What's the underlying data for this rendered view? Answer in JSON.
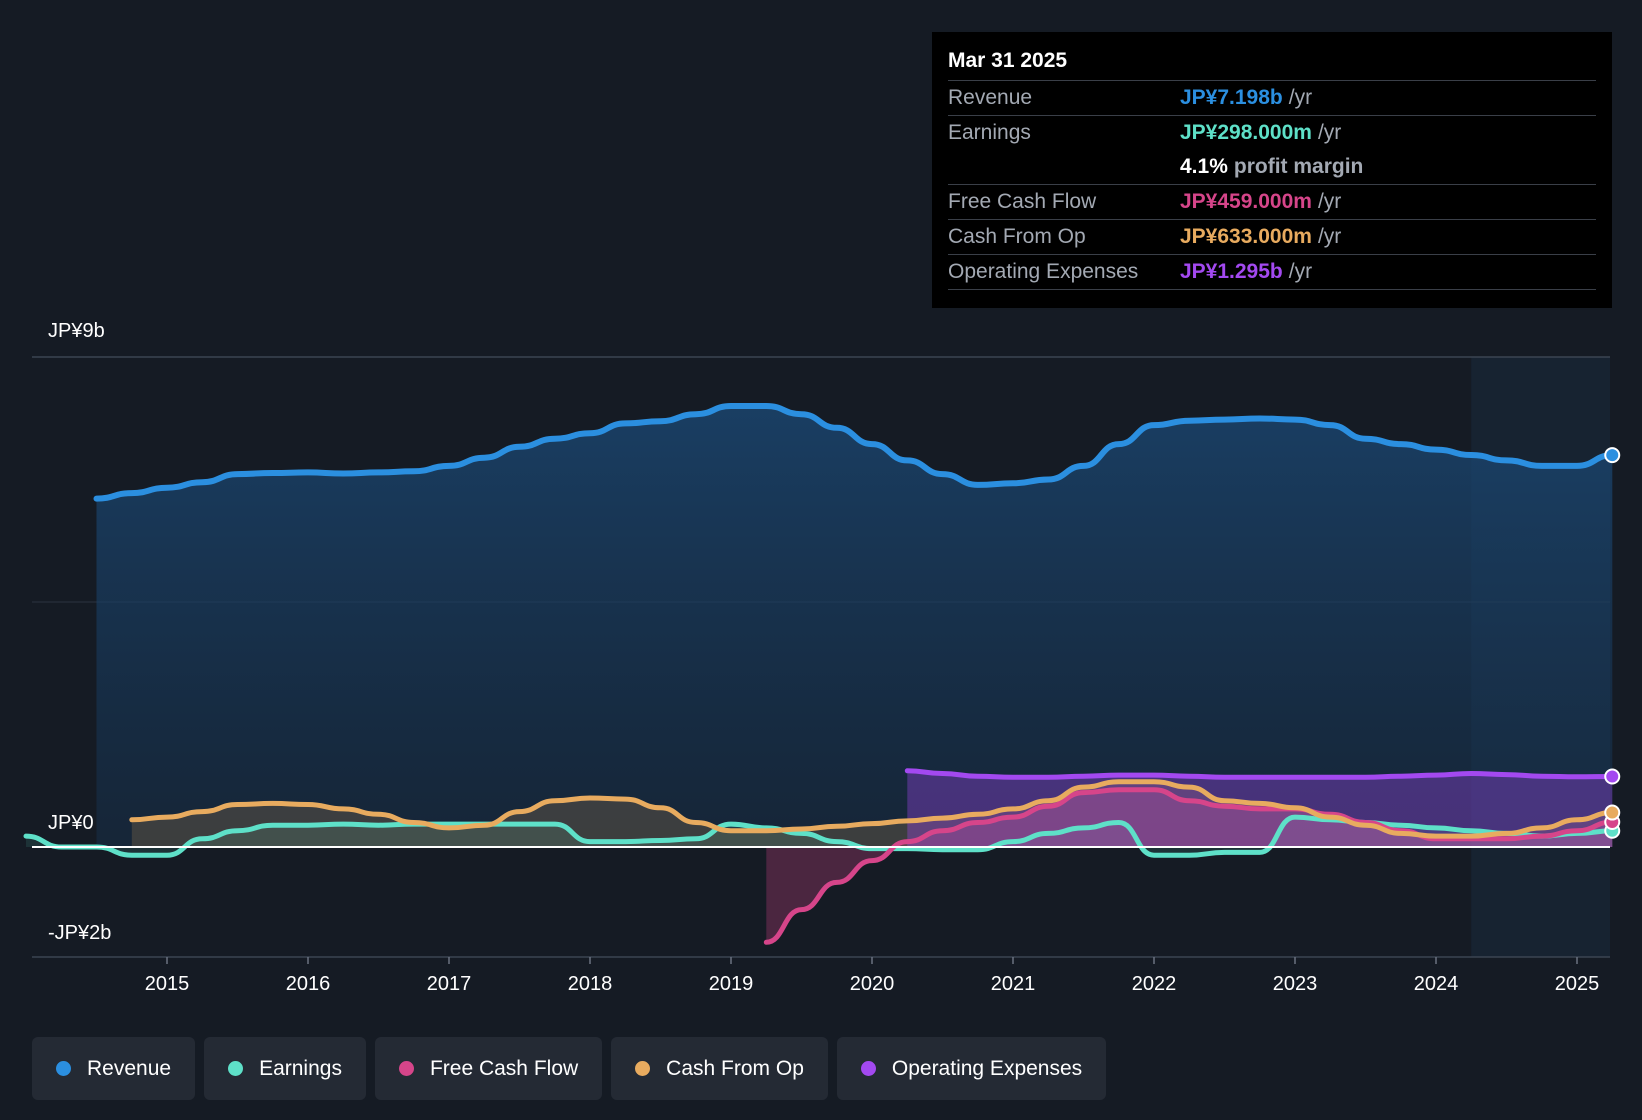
{
  "tooltip": {
    "date": "Mar 31 2025",
    "revenue": {
      "label": "Revenue",
      "value": "JP¥7.198b",
      "unit": "/yr"
    },
    "earnings": {
      "label": "Earnings",
      "value": "JP¥298.000m",
      "unit": "/yr"
    },
    "margin": {
      "value": "4.1%",
      "label": "profit margin"
    },
    "fcf": {
      "label": "Free Cash Flow",
      "value": "JP¥459.000m",
      "unit": "/yr"
    },
    "cfo": {
      "label": "Cash From Op",
      "value": "JP¥633.000m",
      "unit": "/yr"
    },
    "opex": {
      "label": "Operating Expenses",
      "value": "JP¥1.295b",
      "unit": "/yr"
    }
  },
  "axis": {
    "top": "JP¥9b",
    "zero": "JP¥0",
    "bottom": "-JP¥2b"
  },
  "legend": {
    "revenue": "Revenue",
    "earnings": "Earnings",
    "fcf": "Free Cash Flow",
    "cfo": "Cash From Op",
    "opex": "Operating Expenses"
  },
  "colors": {
    "revenue": "#2b8fe0",
    "earnings": "#5ee0c8",
    "fcf": "#d6458a",
    "cfo": "#e8ab5f",
    "opex": "#a349f0"
  },
  "chart_data": {
    "type": "area",
    "title": "",
    "xlabel": "",
    "ylabel": "",
    "ylim": [
      -2,
      9
    ],
    "x_ticks": [
      "2015",
      "2016",
      "2017",
      "2018",
      "2019",
      "2020",
      "2021",
      "2022",
      "2023",
      "2024",
      "2025"
    ],
    "x_range": [
      2014.0,
      2025.25
    ],
    "forecast_start": 2024.25,
    "series": [
      {
        "name": "Revenue",
        "key": "revenue",
        "x": [
          2014.5,
          2014.75,
          2015.0,
          2015.25,
          2015.5,
          2015.75,
          2016.0,
          2016.25,
          2016.5,
          2016.75,
          2017.0,
          2017.25,
          2017.5,
          2017.75,
          2018.0,
          2018.25,
          2018.5,
          2018.75,
          2019.0,
          2019.25,
          2019.5,
          2019.75,
          2020.0,
          2020.25,
          2020.5,
          2020.75,
          2021.0,
          2021.25,
          2021.5,
          2021.75,
          2022.0,
          2022.25,
          2022.5,
          2022.75,
          2023.0,
          2023.25,
          2023.5,
          2023.75,
          2024.0,
          2024.25,
          2024.5,
          2024.75,
          2025.0,
          2025.25
        ],
        "values": [
          6.4,
          6.5,
          6.6,
          6.7,
          6.85,
          6.87,
          6.88,
          6.86,
          6.88,
          6.9,
          7.0,
          7.15,
          7.35,
          7.5,
          7.6,
          7.78,
          7.82,
          7.95,
          8.1,
          8.1,
          7.95,
          7.7,
          7.4,
          7.1,
          6.85,
          6.65,
          6.68,
          6.75,
          7.0,
          7.4,
          7.75,
          7.83,
          7.85,
          7.87,
          7.85,
          7.75,
          7.5,
          7.4,
          7.3,
          7.2,
          7.1,
          7.0,
          7.0,
          7.198
        ]
      },
      {
        "name": "Earnings",
        "key": "earnings",
        "x": [
          2014.0,
          2014.25,
          2014.5,
          2014.75,
          2015.0,
          2015.25,
          2015.5,
          2015.75,
          2016.0,
          2016.25,
          2016.5,
          2016.75,
          2017.0,
          2017.25,
          2017.5,
          2017.75,
          2018.0,
          2018.25,
          2018.5,
          2018.75,
          2019.0,
          2019.25,
          2019.5,
          2019.75,
          2020.0,
          2020.25,
          2020.5,
          2020.75,
          2021.0,
          2021.25,
          2021.5,
          2021.75,
          2022.0,
          2022.25,
          2022.5,
          2022.75,
          2023.0,
          2023.25,
          2023.5,
          2023.75,
          2024.0,
          2024.25,
          2024.5,
          2024.75,
          2025.0,
          2025.25
        ],
        "values": [
          0.2,
          0.0,
          0.0,
          -0.15,
          -0.15,
          0.15,
          0.3,
          0.4,
          0.4,
          0.42,
          0.4,
          0.42,
          0.42,
          0.42,
          0.42,
          0.42,
          0.1,
          0.1,
          0.12,
          0.15,
          0.42,
          0.35,
          0.25,
          0.1,
          -0.03,
          -0.03,
          -0.05,
          -0.05,
          0.1,
          0.25,
          0.35,
          0.45,
          -0.15,
          -0.15,
          -0.1,
          -0.1,
          0.55,
          0.5,
          0.45,
          0.4,
          0.35,
          0.3,
          0.25,
          0.2,
          0.25,
          0.298
        ]
      },
      {
        "name": "Free Cash Flow",
        "key": "fcf",
        "x": [
          2019.25,
          2019.5,
          2019.75,
          2020.0,
          2020.25,
          2020.5,
          2020.75,
          2021.0,
          2021.25,
          2021.5,
          2021.75,
          2022.0,
          2022.25,
          2022.5,
          2022.75,
          2023.0,
          2023.25,
          2023.5,
          2023.75,
          2024.0,
          2024.25,
          2024.5,
          2024.75,
          2025.0,
          2025.25
        ],
        "values": [
          -1.75,
          -1.15,
          -0.65,
          -0.25,
          0.1,
          0.3,
          0.45,
          0.55,
          0.75,
          1.0,
          1.05,
          1.05,
          0.85,
          0.75,
          0.7,
          0.7,
          0.6,
          0.45,
          0.3,
          0.15,
          0.15,
          0.15,
          0.2,
          0.3,
          0.459
        ]
      },
      {
        "name": "Cash From Op",
        "key": "cfo",
        "x": [
          2014.75,
          2015.0,
          2015.25,
          2015.5,
          2015.75,
          2016.0,
          2016.25,
          2016.5,
          2016.75,
          2017.0,
          2017.25,
          2017.5,
          2017.75,
          2018.0,
          2018.25,
          2018.5,
          2018.75,
          2019.0,
          2019.25,
          2019.5,
          2019.75,
          2020.0,
          2020.25,
          2020.5,
          2020.75,
          2021.0,
          2021.25,
          2021.5,
          2021.75,
          2022.0,
          2022.25,
          2022.5,
          2022.75,
          2023.0,
          2023.25,
          2023.5,
          2023.75,
          2024.0,
          2024.25,
          2024.5,
          2024.75,
          2025.0,
          2025.25
        ],
        "values": [
          0.5,
          0.55,
          0.65,
          0.78,
          0.8,
          0.78,
          0.7,
          0.6,
          0.45,
          0.35,
          0.4,
          0.65,
          0.85,
          0.9,
          0.88,
          0.72,
          0.45,
          0.3,
          0.3,
          0.33,
          0.38,
          0.43,
          0.48,
          0.53,
          0.6,
          0.7,
          0.85,
          1.1,
          1.2,
          1.2,
          1.1,
          0.85,
          0.8,
          0.72,
          0.55,
          0.4,
          0.25,
          0.2,
          0.2,
          0.25,
          0.35,
          0.5,
          0.633
        ]
      },
      {
        "name": "Operating Expenses",
        "key": "opex",
        "x": [
          2020.25,
          2020.5,
          2020.75,
          2021.0,
          2021.25,
          2021.5,
          2021.75,
          2022.0,
          2022.25,
          2022.5,
          2022.75,
          2023.0,
          2023.25,
          2023.5,
          2023.75,
          2024.0,
          2024.25,
          2024.5,
          2024.75,
          2025.0,
          2025.25
        ],
        "values": [
          1.4,
          1.35,
          1.3,
          1.28,
          1.28,
          1.3,
          1.32,
          1.32,
          1.3,
          1.28,
          1.28,
          1.28,
          1.28,
          1.28,
          1.3,
          1.32,
          1.35,
          1.33,
          1.3,
          1.29,
          1.295
        ]
      }
    ]
  }
}
